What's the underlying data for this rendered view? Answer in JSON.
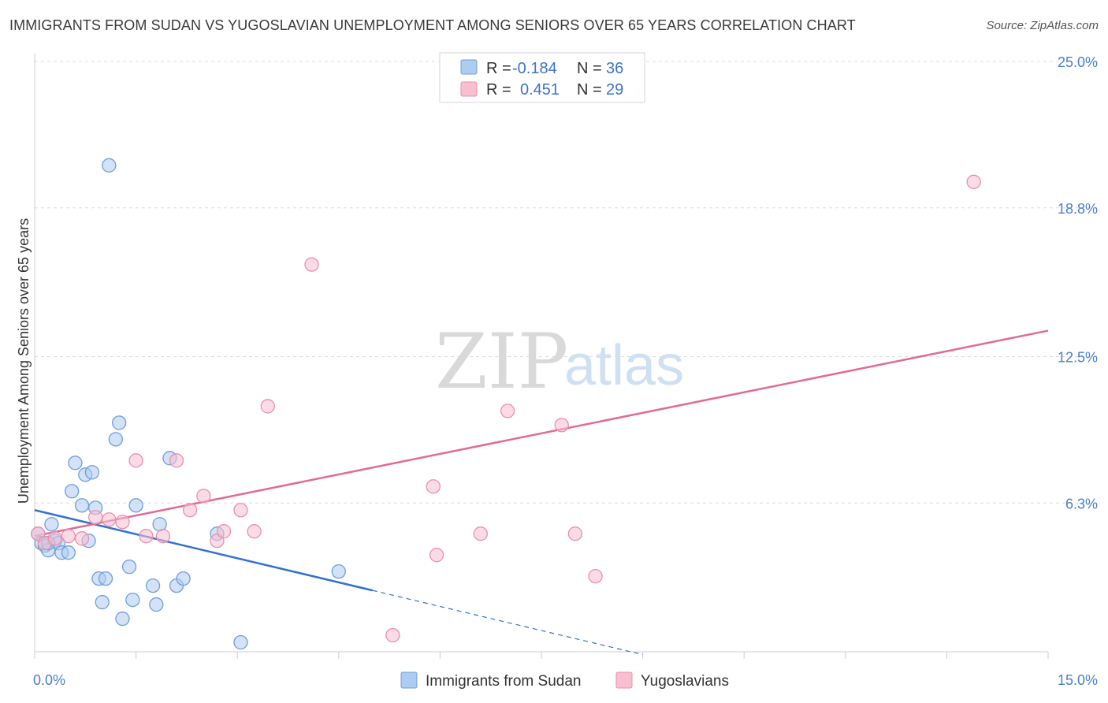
{
  "title": "IMMIGRANTS FROM SUDAN VS YUGOSLAVIAN UNEMPLOYMENT AMONG SENIORS OVER 65 YEARS CORRELATION CHART",
  "source": "Source: ZipAtlas.com",
  "watermark": {
    "zip": "ZIP",
    "atlas": "atlas"
  },
  "legend": {
    "series1": {
      "r_label": "R = ",
      "r_value": "-0.184",
      "n_label": "N = ",
      "n_value": "36"
    },
    "series2": {
      "r_label": "R = ",
      "r_value": "0.451",
      "n_label": "N = ",
      "n_value": "29"
    }
  },
  "colors": {
    "blue_fill": "#aecbf0",
    "blue_stroke": "#6f9fdc",
    "blue_line": "#3370d4",
    "pink_fill": "#f7bfd0",
    "pink_stroke": "#ea8fae",
    "pink_line": "#e26a96",
    "grid": "#dcdcdc",
    "axis_text": "#4a7fcf"
  },
  "chart_data": {
    "type": "scatter",
    "title": "IMMIGRANTS FROM SUDAN VS YUGOSLAVIAN UNEMPLOYMENT AMONG SENIORS OVER 65 YEARS CORRELATION CHART",
    "xlabel": "",
    "ylabel": "Unemployment Among Seniors over 65 years",
    "xlim": [
      0,
      15
    ],
    "ylim": [
      0,
      25
    ],
    "x_tick_labels": [
      "0.0%",
      "15.0%"
    ],
    "y_ticks": [
      6.3,
      12.5,
      18.8,
      25.0
    ],
    "y_tick_labels": [
      "6.3%",
      "12.5%",
      "18.8%",
      "25.0%"
    ],
    "grid": true,
    "legend_position": "top-center",
    "series": [
      {
        "name": "Immigrants from Sudan",
        "color": "#aecbf0",
        "points": [
          [
            0.05,
            5.0
          ],
          [
            0.1,
            4.6
          ],
          [
            0.15,
            4.5
          ],
          [
            0.2,
            4.3
          ],
          [
            0.25,
            5.4
          ],
          [
            0.3,
            4.7
          ],
          [
            0.35,
            4.6
          ],
          [
            0.4,
            4.2
          ],
          [
            0.5,
            4.2
          ],
          [
            0.55,
            6.8
          ],
          [
            0.6,
            8.0
          ],
          [
            0.7,
            6.2
          ],
          [
            0.75,
            7.5
          ],
          [
            0.8,
            4.7
          ],
          [
            0.85,
            7.6
          ],
          [
            0.9,
            6.1
          ],
          [
            0.95,
            3.1
          ],
          [
            1.0,
            2.1
          ],
          [
            1.05,
            3.1
          ],
          [
            1.1,
            20.6
          ],
          [
            1.2,
            9.0
          ],
          [
            1.25,
            9.7
          ],
          [
            1.3,
            1.4
          ],
          [
            1.4,
            3.6
          ],
          [
            1.45,
            2.2
          ],
          [
            1.5,
            6.2
          ],
          [
            1.75,
            2.8
          ],
          [
            1.8,
            2.0
          ],
          [
            1.85,
            5.4
          ],
          [
            2.0,
            8.2
          ],
          [
            2.1,
            2.8
          ],
          [
            2.2,
            3.1
          ],
          [
            2.7,
            5.0
          ],
          [
            3.05,
            0.4
          ],
          [
            4.5,
            3.4
          ],
          [
            0.2,
            4.6
          ]
        ]
      },
      {
        "name": "Yugoslavians",
        "color": "#f7bfd0",
        "points": [
          [
            0.05,
            5.0
          ],
          [
            0.15,
            4.6
          ],
          [
            0.3,
            4.8
          ],
          [
            0.5,
            4.9
          ],
          [
            0.7,
            4.8
          ],
          [
            0.9,
            5.7
          ],
          [
            1.1,
            5.6
          ],
          [
            1.3,
            5.5
          ],
          [
            1.5,
            8.1
          ],
          [
            1.65,
            4.9
          ],
          [
            1.9,
            4.9
          ],
          [
            2.1,
            8.1
          ],
          [
            2.3,
            6.0
          ],
          [
            2.5,
            6.6
          ],
          [
            2.7,
            4.7
          ],
          [
            2.8,
            5.1
          ],
          [
            3.05,
            6.0
          ],
          [
            3.25,
            5.1
          ],
          [
            3.45,
            10.4
          ],
          [
            4.1,
            16.4
          ],
          [
            5.9,
            7.0
          ],
          [
            5.95,
            4.1
          ],
          [
            5.3,
            0.7
          ],
          [
            6.6,
            5.0
          ],
          [
            7.0,
            10.2
          ],
          [
            7.8,
            9.6
          ],
          [
            8.0,
            5.0
          ],
          [
            8.3,
            3.2
          ],
          [
            13.9,
            19.9
          ]
        ]
      }
    ],
    "trendlines": [
      {
        "series": "Immigrants from Sudan",
        "x": [
          0,
          5.0
        ],
        "y": [
          6.0,
          2.6
        ],
        "dashed_extension_to_x": 9.0
      },
      {
        "series": "Yugoslavians",
        "x": [
          0,
          15.0
        ],
        "y": [
          4.9,
          13.6
        ]
      }
    ]
  },
  "bottom_legend": [
    "Immigrants from Sudan",
    "Yugoslavians"
  ]
}
